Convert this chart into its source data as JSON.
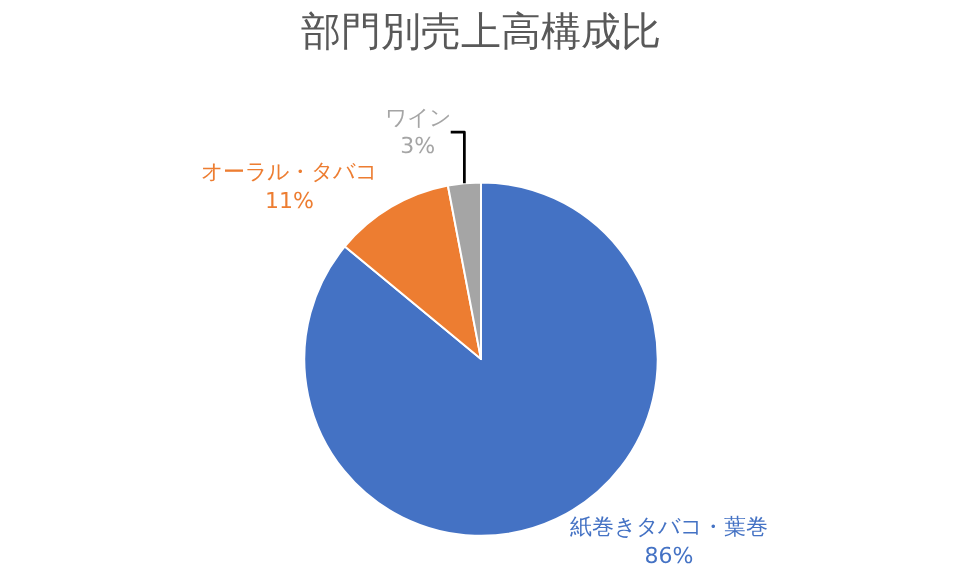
{
  "chart_data": {
    "type": "pie",
    "title": "部門別売上高構成比",
    "categories": [
      "紙巻きタバコ・葉巻",
      "オーラル・タバコ",
      "ワイン"
    ],
    "values": [
      86,
      11,
      3
    ],
    "value_labels": [
      "86%",
      "11%",
      "3%"
    ],
    "colors": [
      "#4472c4",
      "#ed7d31",
      "#a5a5a5"
    ],
    "legend": false
  }
}
